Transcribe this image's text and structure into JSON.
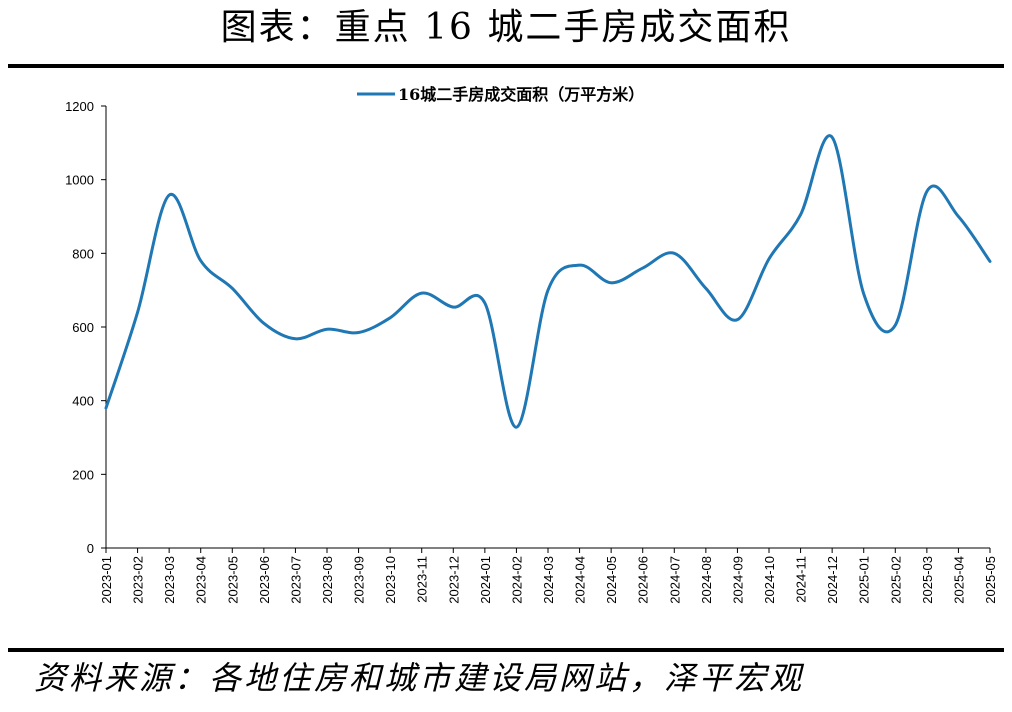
{
  "header": {
    "title": "图表：重点 16 城二手房成交面积"
  },
  "footer": {
    "source": "资料来源：各地住房和城市建设局网站，泽平宏观"
  },
  "colors": {
    "line": "#1f77b4",
    "axis": "#000000",
    "rule": "#000000"
  },
  "chart_data": {
    "type": "line",
    "title": "",
    "xlabel": "",
    "ylabel": "",
    "ylim": [
      0,
      1200
    ],
    "yticks": [
      0,
      200,
      400,
      600,
      800,
      1000,
      1200
    ],
    "grid": false,
    "legend_position": "top-center",
    "categories": [
      "2023-01",
      "2023-02",
      "2023-03",
      "2023-04",
      "2023-05",
      "2023-06",
      "2023-07",
      "2023-08",
      "2023-09",
      "2023-10",
      "2023-11",
      "2023-12",
      "2024-01",
      "2024-02",
      "2024-03",
      "2024-04",
      "2024-05",
      "2024-06",
      "2024-07",
      "2024-08",
      "2024-09",
      "2024-10",
      "2024-11",
      "2024-12",
      "2025-01",
      "2025-02",
      "2025-03",
      "2025-04",
      "2025-05"
    ],
    "series": [
      {
        "name": "16城二手房成交面积（万平方米）",
        "values": [
          380,
          640,
          958,
          780,
          705,
          610,
          568,
          594,
          585,
          625,
          692,
          654,
          665,
          328,
          700,
          768,
          720,
          760,
          800,
          705,
          620,
          785,
          905,
          1115,
          690,
          605,
          968,
          900,
          778
        ]
      }
    ]
  }
}
